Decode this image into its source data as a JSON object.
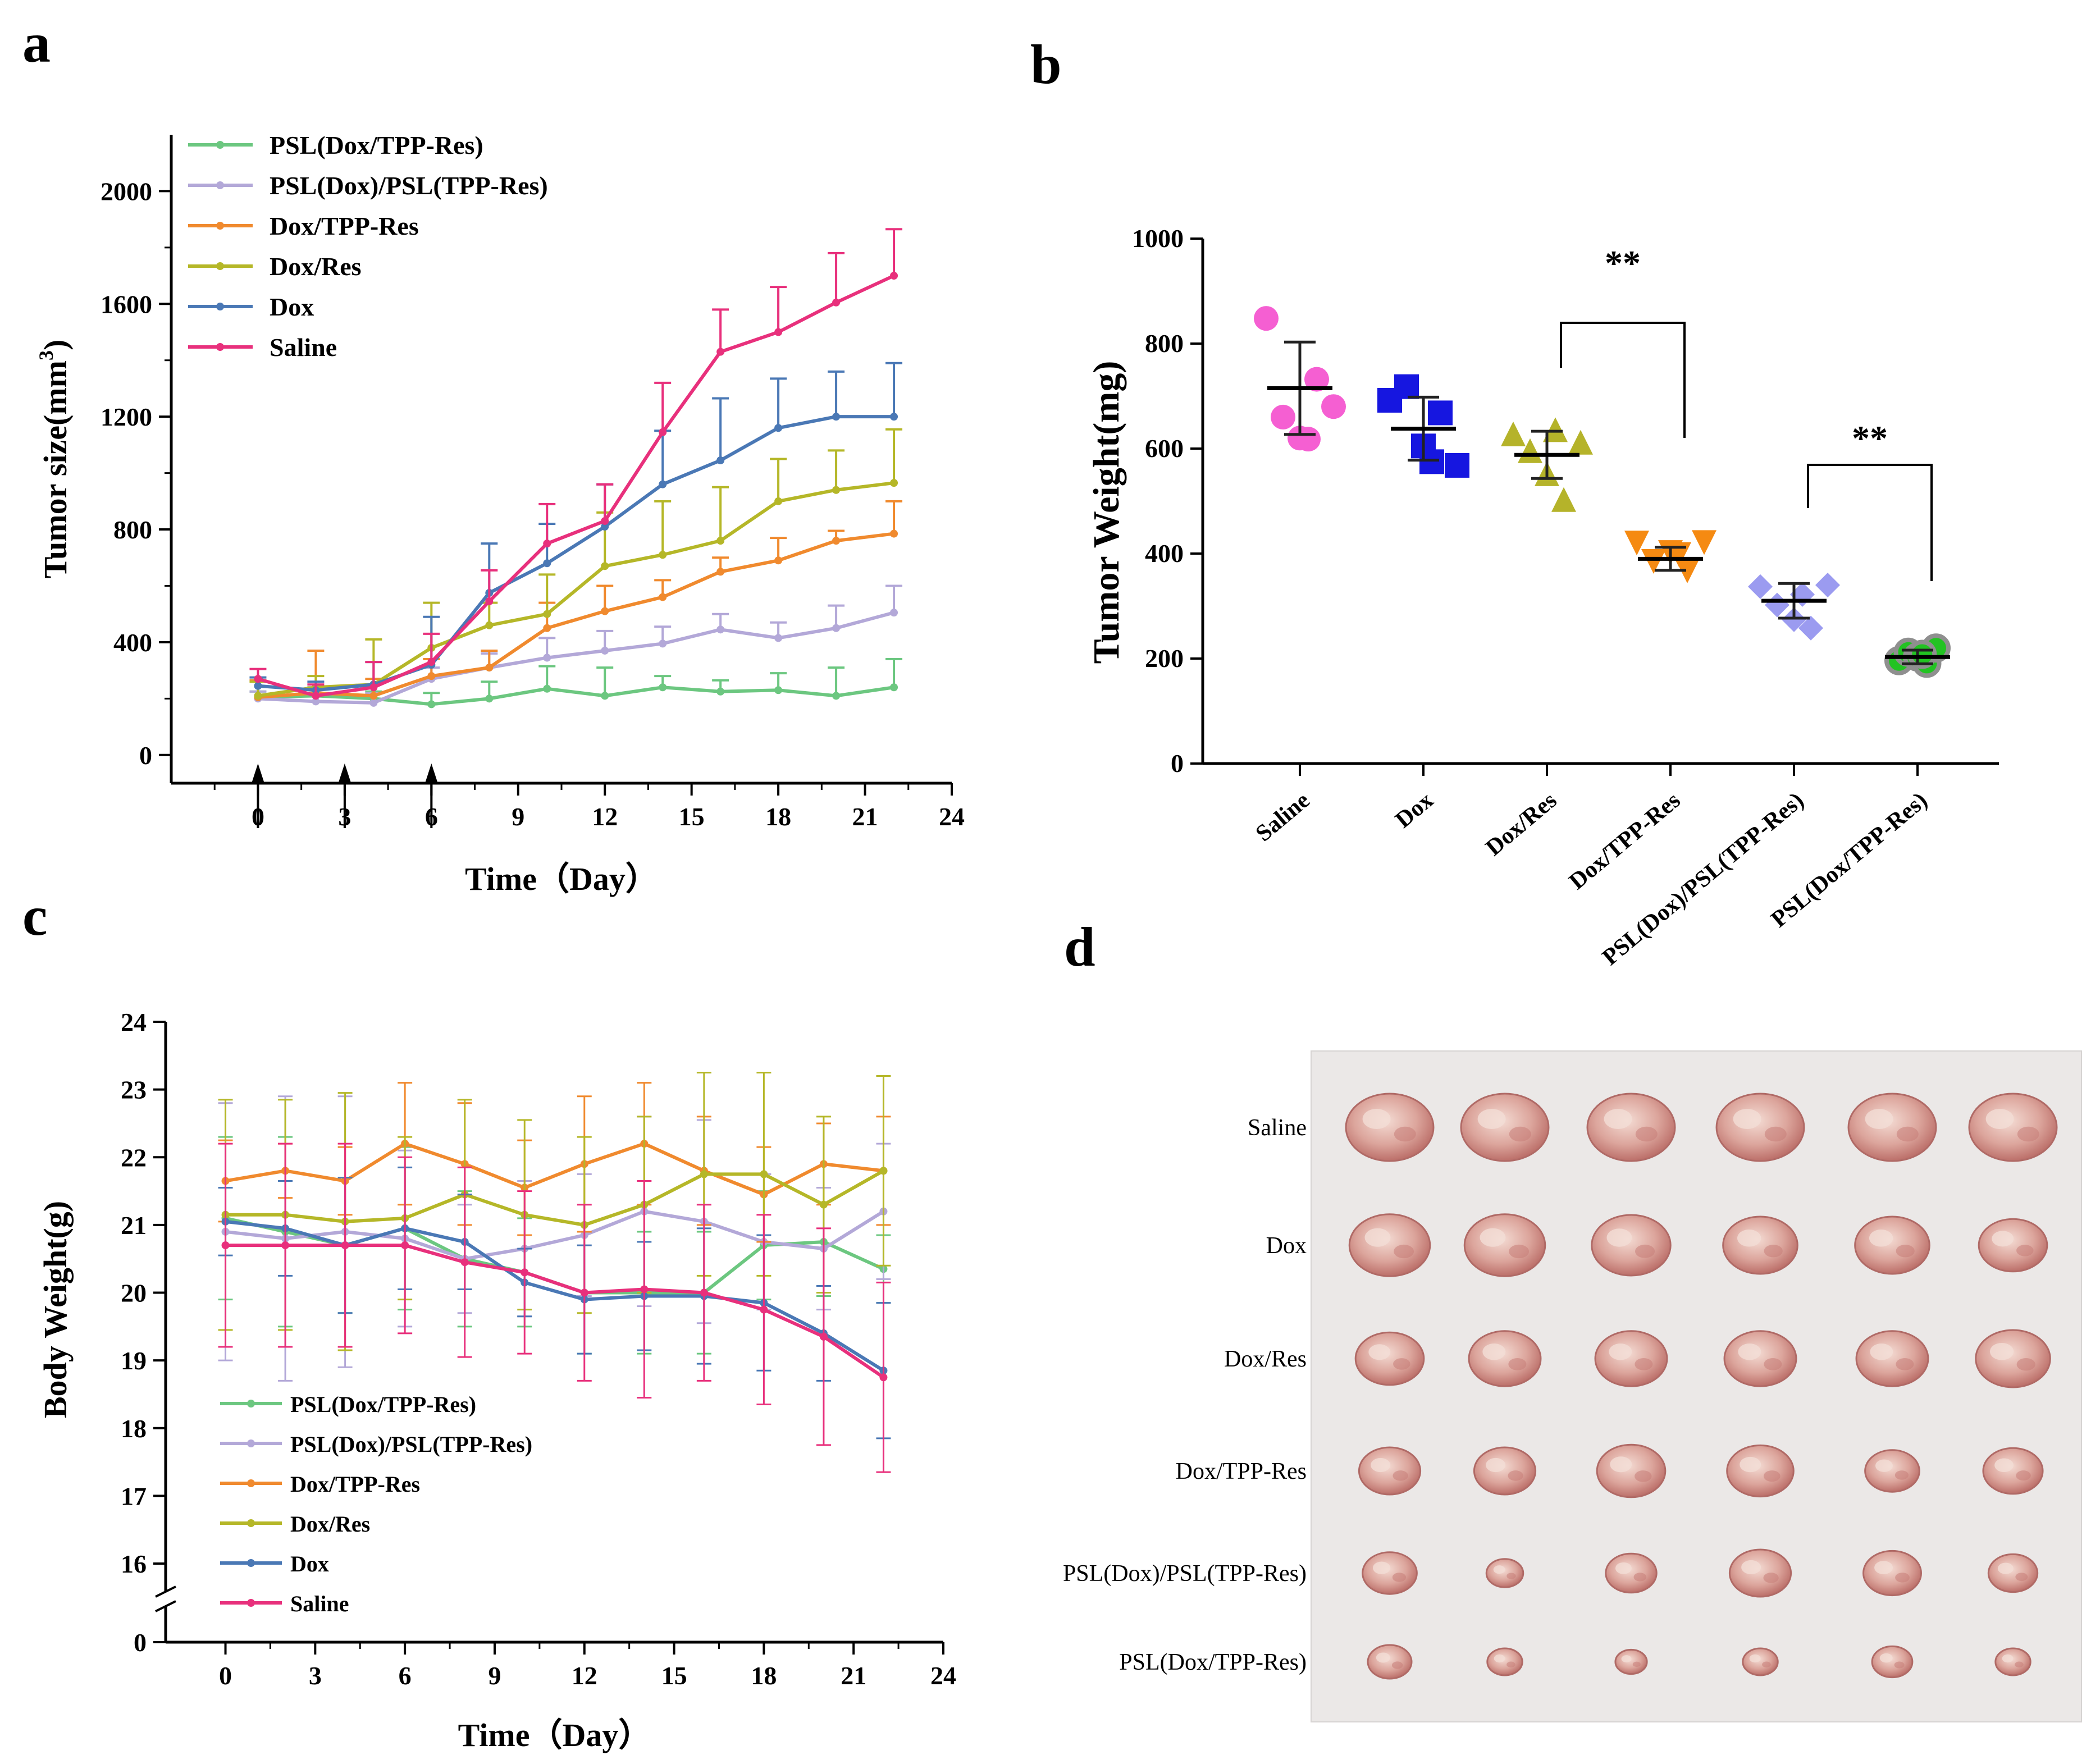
{
  "chart_data": [
    {
      "panel": "a",
      "type": "line",
      "xlabel": "Time（Day）",
      "ylabel": "Tumor size(mm",
      "ylabel_sup": "3",
      "ylabel_end": ")",
      "xlim": [
        -3,
        24
      ],
      "ylim": [
        -100,
        2200
      ],
      "xticks": [
        0,
        3,
        6,
        9,
        12,
        15,
        18,
        21,
        24
      ],
      "yticks": [
        0,
        400,
        800,
        1200,
        1600,
        2000
      ],
      "x": [
        0,
        2,
        4,
        6,
        8,
        10,
        12,
        14,
        16,
        18,
        20,
        22
      ],
      "arrows_at": [
        0,
        3,
        6
      ],
      "legend": "top-left",
      "series": [
        {
          "name": "PSL(Dox/TPP-Res)",
          "color": "#6cc780",
          "values": [
            205,
            210,
            200,
            180,
            200,
            235,
            210,
            240,
            225,
            230,
            210,
            240
          ],
          "err": [
            20,
            30,
            25,
            40,
            60,
            80,
            100,
            40,
            40,
            60,
            100,
            100
          ]
        },
        {
          "name": "PSL(Dox)/PSL(TPP-Res)",
          "color": "#b3a8d8",
          "values": [
            200,
            190,
            185,
            270,
            310,
            345,
            370,
            395,
            445,
            415,
            450,
            505
          ],
          "err": [
            25,
            30,
            35,
            40,
            50,
            70,
            70,
            60,
            55,
            55,
            80,
            95
          ]
        },
        {
          "name": "Dox/TPP-Res",
          "color": "#f08a2e",
          "values": [
            205,
            220,
            210,
            280,
            310,
            450,
            510,
            560,
            650,
            690,
            760,
            785
          ],
          "err": [
            60,
            150,
            60,
            60,
            60,
            90,
            90,
            60,
            50,
            80,
            35,
            115
          ]
        },
        {
          "name": "Dox/Res",
          "color": "#b5b728",
          "values": [
            210,
            240,
            250,
            380,
            460,
            500,
            670,
            710,
            760,
            900,
            940,
            965
          ],
          "err": [
            50,
            40,
            160,
            160,
            80,
            140,
            190,
            190,
            190,
            150,
            140,
            190
          ]
        },
        {
          "name": "Dox",
          "color": "#4a78b5",
          "values": [
            245,
            230,
            250,
            320,
            575,
            680,
            810,
            960,
            1045,
            1160,
            1200,
            1200
          ],
          "err": [
            30,
            30,
            80,
            170,
            175,
            140,
            150,
            190,
            220,
            175,
            160,
            190
          ]
        },
        {
          "name": "Saline",
          "color": "#e8307c",
          "values": [
            270,
            210,
            240,
            330,
            545,
            750,
            830,
            1145,
            1430,
            1500,
            1605,
            1700
          ],
          "err": [
            35,
            40,
            90,
            100,
            110,
            140,
            130,
            175,
            150,
            160,
            175,
            165
          ]
        }
      ]
    },
    {
      "panel": "b",
      "type": "scatter",
      "ylabel": "Tumor  Weight(mg)",
      "ylim": [
        0,
        1000
      ],
      "yticks": [
        0,
        200,
        400,
        600,
        800,
        1000
      ],
      "categories": [
        "Saline",
        "Dox",
        "Dox/Res",
        "Dox/TPP-Res",
        "PSL(Dox)/PSL(TPP-Res)",
        "PSL(Dox/TPP-Res)"
      ],
      "means": [
        715,
        638,
        588,
        390,
        310,
        203
      ],
      "sd": [
        88,
        60,
        45,
        22,
        33,
        13
      ],
      "colors": [
        "#f55fd2",
        "#1616e0",
        "#b5b32a",
        "#f58a12",
        "#9b9bf0",
        "#22c322"
      ],
      "markers": [
        "circle",
        "square",
        "triangle-up",
        "triangle-down",
        "diamond",
        "circle"
      ],
      "points": [
        [
          848,
          660,
          620,
          732,
          680,
          618
        ],
        [
          692,
          718,
          605,
          668,
          568,
          575
        ],
        [
          628,
          596,
          552,
          503,
          612,
          636
        ],
        [
          420,
          385,
          402,
          367,
          421,
          398
        ],
        [
          337,
          302,
          274,
          258,
          340,
          322
        ],
        [
          196,
          212,
          203,
          191,
          220,
          208
        ]
      ],
      "significance": [
        {
          "label": "**",
          "from": "Dox/Res",
          "to": "Dox/TPP-Res"
        },
        {
          "label": "**",
          "from": "PSL(Dox)/PSL(TPP-Res)",
          "to": "PSL(Dox/TPP-Res)"
        }
      ]
    },
    {
      "panel": "c",
      "type": "line",
      "xlabel": "Time（Day）",
      "ylabel": "Body Weight(g)",
      "xlim": [
        -2,
        24
      ],
      "xticks": [
        0,
        3,
        6,
        9,
        12,
        15,
        18,
        21,
        24
      ],
      "yticks": [
        0,
        16,
        17,
        18,
        19,
        20,
        21,
        22,
        23,
        24
      ],
      "axis_break": [
        0,
        16
      ],
      "x": [
        0,
        2,
        4,
        6,
        8,
        10,
        12,
        14,
        16,
        18,
        20,
        22
      ],
      "legend": "bottom-left",
      "series": [
        {
          "name": "PSL(Dox/TPP-Res)",
          "color": "#6cc780",
          "values": [
            21.1,
            20.9,
            20.7,
            20.95,
            20.5,
            20.3,
            20.0,
            20.0,
            20.0,
            20.7,
            20.75,
            20.35
          ],
          "err": [
            1.2,
            1.4,
            1.0,
            1.2,
            1.0,
            0.8,
            0.9,
            0.9,
            0.9,
            0.8,
            0.8,
            0.5
          ]
        },
        {
          "name": "PSL(Dox)/PSL(TPP-Res)",
          "color": "#b3a8d8",
          "values": [
            20.9,
            20.8,
            20.9,
            20.8,
            20.5,
            20.65,
            20.85,
            21.2,
            21.05,
            20.75,
            20.65,
            21.2
          ],
          "err": [
            1.9,
            2.1,
            2.0,
            1.3,
            0.8,
            1.0,
            0.9,
            1.4,
            1.5,
            1.0,
            0.9,
            1.0
          ]
        },
        {
          "name": "Dox/TPP-Res",
          "color": "#f08a2e",
          "values": [
            21.65,
            21.8,
            21.65,
            22.2,
            21.9,
            21.55,
            21.9,
            22.2,
            21.8,
            21.45,
            21.9,
            21.8
          ],
          "err": [
            0.6,
            0.4,
            0.5,
            0.9,
            0.9,
            0.7,
            1.0,
            0.9,
            0.8,
            0.7,
            0.6,
            0.8
          ]
        },
        {
          "name": "Dox/Res",
          "color": "#b5b728",
          "values": [
            21.15,
            21.15,
            21.05,
            21.1,
            21.45,
            21.15,
            21.0,
            21.3,
            21.75,
            21.75,
            21.3,
            21.8
          ],
          "err": [
            1.7,
            1.7,
            1.9,
            1.2,
            1.4,
            1.4,
            1.3,
            1.3,
            1.5,
            1.5,
            1.3,
            1.4
          ]
        },
        {
          "name": "Dox",
          "color": "#4a78b5",
          "values": [
            21.05,
            20.95,
            20.7,
            20.95,
            20.75,
            20.15,
            19.9,
            19.95,
            19.95,
            19.85,
            19.4,
            18.85
          ],
          "err": [
            0.5,
            0.7,
            1.0,
            0.9,
            0.7,
            0.5,
            0.8,
            0.8,
            1.0,
            1.0,
            0.7,
            1.0
          ]
        },
        {
          "name": "Saline",
          "color": "#e8307c",
          "values": [
            20.7,
            20.7,
            20.7,
            20.7,
            20.45,
            20.3,
            20.0,
            20.05,
            20.0,
            19.75,
            19.35,
            18.75
          ],
          "err": [
            1.5,
            1.5,
            1.5,
            1.3,
            1.4,
            1.2,
            1.3,
            1.6,
            1.3,
            1.4,
            1.6,
            1.4
          ]
        }
      ]
    },
    {
      "panel": "d",
      "type": "table",
      "rows": [
        "Saline",
        "Dox",
        "Dox/Res",
        "Dox/TPP-Res",
        "PSL(Dox)/PSL(TPP-Res)",
        "PSL(Dox/TPP-Res)"
      ],
      "columns": 6,
      "relative_size": [
        [
          1.0,
          1.0,
          1.0,
          1.0,
          1.0,
          1.0
        ],
        [
          0.92,
          0.92,
          0.9,
          0.85,
          0.85,
          0.78
        ],
        [
          0.78,
          0.82,
          0.82,
          0.82,
          0.82,
          0.85
        ],
        [
          0.7,
          0.7,
          0.78,
          0.76,
          0.62,
          0.68
        ],
        [
          0.62,
          0.42,
          0.58,
          0.7,
          0.66,
          0.56
        ],
        [
          0.5,
          0.4,
          0.36,
          0.4,
          0.46,
          0.4
        ]
      ]
    }
  ],
  "panels": {
    "a": "a",
    "b": "b",
    "c": "c",
    "d": "d"
  }
}
